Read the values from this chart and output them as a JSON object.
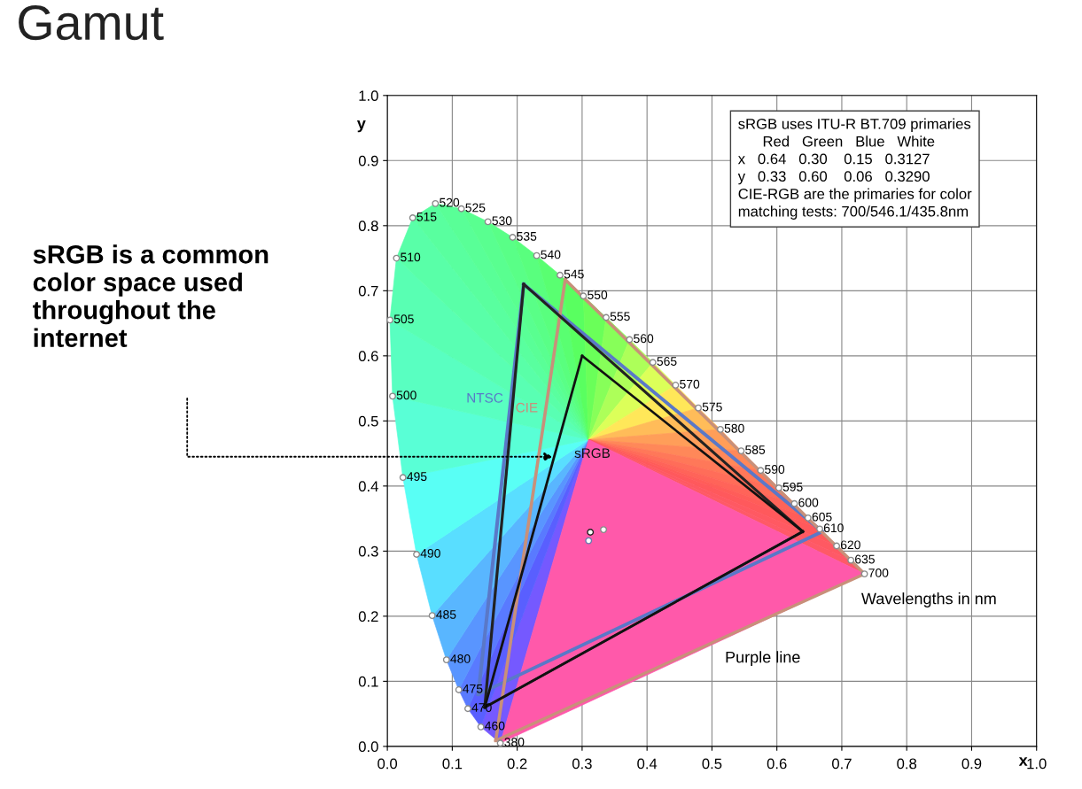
{
  "chart_data": {
    "type": "line",
    "title": "Gamut",
    "xlabel": "x",
    "ylabel": "y",
    "xlim": [
      0,
      1
    ],
    "ylim": [
      0,
      1
    ],
    "xticks": [
      {
        "value": 0,
        "label": "0.0"
      },
      0.1,
      0.2,
      0.3,
      0.4,
      0.5,
      0.6,
      0.7,
      0.8,
      0.9,
      {
        "value": 1,
        "label": "1.0"
      }
    ],
    "yticks": [
      {
        "value": 0,
        "label": "0.0"
      },
      0.1,
      0.2,
      0.3,
      0.4,
      0.5,
      0.6,
      0.7,
      0.8,
      0.9,
      {
        "value": 1,
        "label": "1.0"
      }
    ],
    "grid": true,
    "series": [
      {
        "type": "scatter",
        "marker": "circle",
        "color": "#8a8a8a",
        "x": [
          0.174,
          0.144,
          0.124,
          0.11,
          0.091,
          0.069,
          0.045,
          0.024,
          0.008,
          0.004,
          0.014,
          0.039,
          0.074,
          0.114,
          0.155,
          0.193,
          0.23,
          0.266,
          0.302,
          0.337,
          0.373,
          0.409,
          0.444,
          0.479,
          0.513,
          0.545,
          0.575,
          0.603,
          0.627,
          0.648,
          0.666,
          0.692,
          0.714,
          0.735
        ],
        "values": [
          0.005,
          0.03,
          0.058,
          0.087,
          0.133,
          0.201,
          0.295,
          0.413,
          0.538,
          0.655,
          0.75,
          0.812,
          0.834,
          0.826,
          0.806,
          0.782,
          0.754,
          0.724,
          0.692,
          0.659,
          0.625,
          0.59,
          0.555,
          0.52,
          0.487,
          0.454,
          0.424,
          0.397,
          0.373,
          0.351,
          0.334,
          0.308,
          0.286,
          0.265
        ]
      },
      {
        "color": "#5a78c8",
        "name": "NTSC",
        "x": [
          0.14,
          0.21
        ],
        "values": [
          0.08,
          0.71
        ]
      },
      {
        "color": "#5a78c8",
        "x": [
          0.21,
          0.67
        ],
        "values": [
          0.71,
          0.33
        ]
      },
      {
        "color": "#5a78c8",
        "x": [
          0.14,
          0.67
        ],
        "values": [
          0.08,
          0.33
        ]
      },
      {
        "color": "#c8907a",
        "name": "CIE",
        "x": [
          0.167,
          0.274
        ],
        "values": [
          0.009,
          0.717
        ]
      },
      {
        "color": "#c8907a",
        "x": [
          0.274,
          0.735
        ],
        "values": [
          0.717,
          0.265
        ]
      },
      {
        "color": "#c8907a",
        "x": [
          0.167,
          0.735
        ],
        "values": [
          0.009,
          0.265
        ]
      },
      {
        "color": "#222222",
        "x": [
          0.15,
          0.21
        ],
        "values": [
          0.06,
          0.71
        ]
      },
      {
        "color": "#222222",
        "x": [
          0.21,
          0.64
        ],
        "values": [
          0.71,
          0.33
        ]
      },
      {
        "color": "#222222",
        "x": [
          0.15,
          0.64
        ],
        "values": [
          0.06,
          0.33
        ]
      },
      {
        "color": "#111111",
        "name": "sRGB",
        "x": [
          0.15,
          0.3
        ],
        "values": [
          0.06,
          0.6
        ]
      },
      {
        "color": "#111111",
        "x": [
          0.3,
          0.64
        ],
        "values": [
          0.6,
          0.33
        ]
      },
      {
        "color": "#111111",
        "x": [
          0.15,
          0.64
        ],
        "values": [
          0.06,
          0.33
        ]
      },
      {
        "type": "scatter",
        "marker": "circle",
        "color": "#333333",
        "x": [
          0.3127,
          0.333,
          0.31
        ],
        "values": [
          0.329,
          0.333,
          0.316
        ],
        "colors": [
          "#222222",
          "#888888",
          "#6a7ab0"
        ]
      }
    ],
    "annotations": [
      "sRGB uses ITU-R BT.709 primaries",
      "      Red   Green   Blue   White",
      "x   0.64   0.30    0.15   0.3127",
      "y   0.33   0.60    0.06   0.3290",
      "CIE-RGB are the primaries for color\nmatching tests: 700/546.1/435.8nm",
      "Wavelengths in nm",
      "Purple line",
      "sRGB is a common\ncolor space used\nthroughout the\ninternet",
      {
        "text": "380",
        "x": 0.174,
        "y": 0.005
      },
      {
        "text": "460",
        "x": 0.144,
        "y": 0.03
      },
      {
        "text": "470",
        "x": 0.124,
        "y": 0.058
      },
      {
        "text": "475",
        "x": 0.11,
        "y": 0.087
      },
      {
        "text": "480",
        "x": 0.091,
        "y": 0.133
      },
      {
        "text": "485",
        "x": 0.069,
        "y": 0.201
      },
      {
        "text": "490",
        "x": 0.045,
        "y": 0.295
      },
      {
        "text": "495",
        "x": 0.024,
        "y": 0.413
      },
      {
        "text": "500",
        "x": 0.008,
        "y": 0.538
      },
      {
        "text": "505",
        "x": 0.004,
        "y": 0.655
      },
      {
        "text": "510",
        "x": 0.014,
        "y": 0.75
      },
      {
        "text": "515",
        "x": 0.039,
        "y": 0.812
      },
      {
        "text": "520",
        "x": 0.074,
        "y": 0.834
      },
      {
        "text": "525",
        "x": 0.114,
        "y": 0.826
      },
      {
        "text": "530",
        "x": 0.155,
        "y": 0.806
      },
      {
        "text": "535",
        "x": 0.193,
        "y": 0.782
      },
      {
        "text": "540",
        "x": 0.23,
        "y": 0.754
      },
      {
        "text": "545",
        "x": 0.266,
        "y": 0.724
      },
      {
        "text": "550",
        "x": 0.302,
        "y": 0.692
      },
      {
        "text": "555",
        "x": 0.337,
        "y": 0.659
      },
      {
        "text": "560",
        "x": 0.373,
        "y": 0.625
      },
      {
        "text": "565",
        "x": 0.409,
        "y": 0.59
      },
      {
        "text": "570",
        "x": 0.444,
        "y": 0.555
      },
      {
        "text": "575",
        "x": 0.479,
        "y": 0.52
      },
      {
        "text": "580",
        "x": 0.513,
        "y": 0.487
      },
      {
        "text": "585",
        "x": 0.545,
        "y": 0.454
      },
      {
        "text": "590",
        "x": 0.575,
        "y": 0.424
      },
      {
        "text": "595",
        "x": 0.603,
        "y": 0.397
      },
      {
        "text": "600",
        "x": 0.627,
        "y": 0.373
      },
      {
        "text": "605",
        "x": 0.648,
        "y": 0.351
      },
      {
        "text": "610",
        "x": 0.666,
        "y": 0.334
      },
      {
        "text": "620",
        "x": 0.692,
        "y": 0.308
      },
      {
        "text": "635",
        "x": 0.714,
        "y": 0.286
      },
      {
        "text": "700",
        "x": 0.735,
        "y": 0.265
      }
    ]
  }
}
